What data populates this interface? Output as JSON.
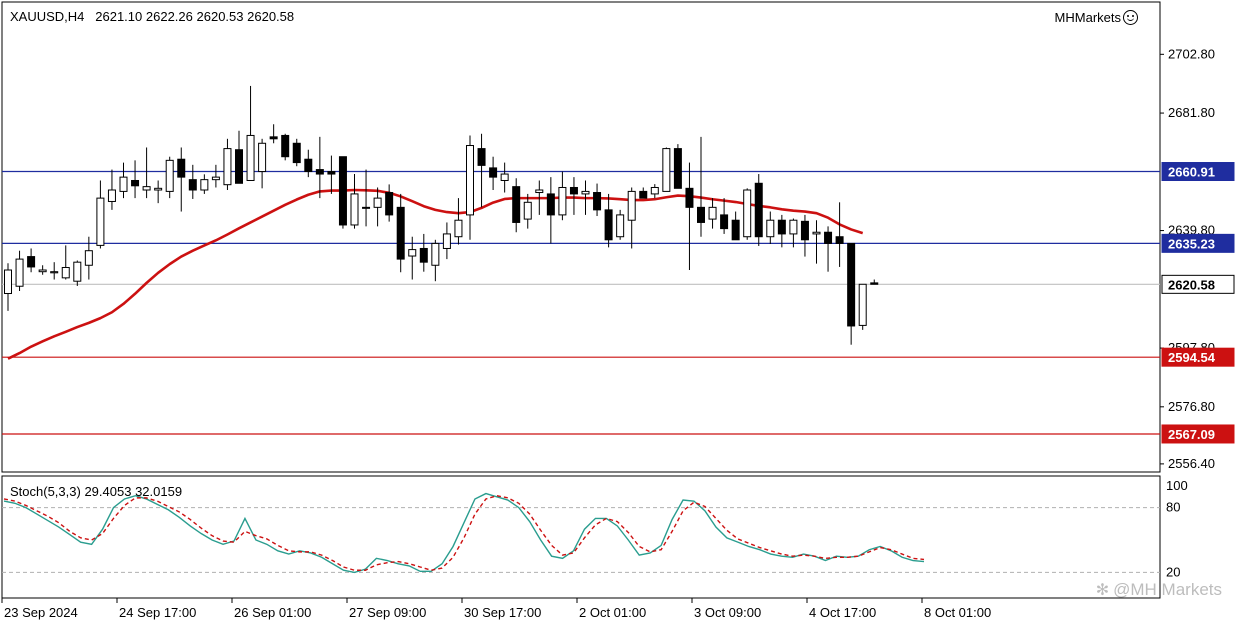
{
  "header": {
    "symbol": "XAUUSD,H4",
    "open": "2621.10",
    "high": "2622.26",
    "low": "2620.53",
    "close": "2620.58"
  },
  "brand": {
    "name": "MHMarkets"
  },
  "watermark": {
    "text": "@MH Markets",
    "icon": "asterisk-like-logo-icon"
  },
  "colors": {
    "bull_fill": "#ffffff",
    "bear_fill": "#000000",
    "ma_line": "#cc1111",
    "support_line": "#cc1111",
    "resistance_line": "#1f2d9f",
    "current_price_line": "#c0c0c0",
    "stoch_main": "#2a9d8f",
    "stoch_signal": "#cc1111"
  },
  "chart_data": [
    {
      "type": "candlestick",
      "title": "XAUUSD,H4",
      "y_ticks": [
        "2702.80",
        "2681.80",
        "2639.80",
        "2597.80",
        "2576.80",
        "2556.40"
      ],
      "x_ticks": [
        "23 Sep 2024",
        "24 Sep 17:00",
        "26 Sep 01:00",
        "27 Sep 09:00",
        "30 Sep 17:00",
        "2 Oct 01:00",
        "3 Oct 09:00",
        "4 Oct 17:00",
        "8 Oct 01:00"
      ],
      "ylim": [
        2553.5,
        2721.5
      ],
      "price_levels": [
        {
          "label": "2660.91",
          "value": 2660.91,
          "kind": "resistance"
        },
        {
          "label": "2635.23",
          "value": 2635.23,
          "kind": "resistance"
        },
        {
          "label": "2620.58",
          "value": 2620.58,
          "kind": "current"
        },
        {
          "label": "2594.54",
          "value": 2594.54,
          "kind": "support"
        },
        {
          "label": "2567.09",
          "value": 2567.09,
          "kind": "support"
        }
      ],
      "candles": [
        [
          2617.3,
          2628.1,
          2611.1,
          2625.7
        ],
        [
          2619.9,
          2632.6,
          2618.2,
          2629.6
        ],
        [
          2630.5,
          2633.4,
          2624.9,
          2626.8
        ],
        [
          2625.1,
          2627.4,
          2624.0,
          2625.7
        ],
        [
          2624.7,
          2628.5,
          2622.3,
          2625.1
        ],
        [
          2622.9,
          2634.5,
          2622.3,
          2626.6
        ],
        [
          2621.7,
          2629.1,
          2620.0,
          2628.5
        ],
        [
          2627.4,
          2637.6,
          2622.3,
          2632.6
        ],
        [
          2634.5,
          2657.7,
          2633.4,
          2651.4
        ],
        [
          2650.2,
          2661.6,
          2647.2,
          2654.3
        ],
        [
          2653.8,
          2664.1,
          2651.4,
          2658.9
        ],
        [
          2657.7,
          2664.9,
          2651.4,
          2655.8
        ],
        [
          2654.3,
          2669.5,
          2651.4,
          2655.5
        ],
        [
          2654.3,
          2657.7,
          2649.6,
          2654.9
        ],
        [
          2653.8,
          2666.2,
          2651.4,
          2664.9
        ],
        [
          2665.3,
          2669.5,
          2646.6,
          2658.9
        ],
        [
          2658.0,
          2663.3,
          2651.1,
          2654.3
        ],
        [
          2654.3,
          2659.9,
          2652.9,
          2658.0
        ],
        [
          2658.0,
          2663.3,
          2655.2,
          2658.9
        ],
        [
          2656.2,
          2672.6,
          2654.3,
          2669.1
        ],
        [
          2668.7,
          2675.5,
          2656.7,
          2656.7
        ],
        [
          2657.7,
          2691.5,
          2657.7,
          2673.8
        ],
        [
          2660.9,
          2672.6,
          2654.9,
          2671.0
        ],
        [
          2673.3,
          2677.8,
          2671.0,
          2672.6
        ],
        [
          2673.8,
          2674.4,
          2664.9,
          2666.2
        ],
        [
          2671.0,
          2672.6,
          2662.8,
          2664.1
        ],
        [
          2665.3,
          2668.7,
          2658.9,
          2660.9
        ],
        [
          2661.6,
          2673.3,
          2651.4,
          2660.0
        ],
        [
          2660.9,
          2666.6,
          2652.9,
          2660.0
        ],
        [
          2666.2,
          2666.2,
          2640.5,
          2641.8
        ],
        [
          2641.8,
          2660.0,
          2640.5,
          2652.9
        ],
        [
          2648.1,
          2661.6,
          2641.3,
          2648.1
        ],
        [
          2648.1,
          2655.2,
          2641.3,
          2651.4
        ],
        [
          2653.4,
          2656.3,
          2643.0,
          2645.4
        ],
        [
          2648.1,
          2652.9,
          2624.9,
          2629.6
        ],
        [
          2630.7,
          2637.6,
          2622.3,
          2633.0
        ],
        [
          2633.4,
          2638.6,
          2625.1,
          2628.5
        ],
        [
          2627.4,
          2636.5,
          2621.7,
          2635.2
        ],
        [
          2633.4,
          2642.7,
          2629.6,
          2638.6
        ],
        [
          2637.6,
          2651.4,
          2634.8,
          2643.5
        ],
        [
          2645.4,
          2673.8,
          2636.5,
          2670.2
        ],
        [
          2669.1,
          2674.4,
          2648.1,
          2663.1
        ],
        [
          2662.2,
          2666.2,
          2654.3,
          2658.9
        ],
        [
          2657.7,
          2664.1,
          2653.4,
          2660.0
        ],
        [
          2655.5,
          2658.5,
          2639.2,
          2642.7
        ],
        [
          2643.9,
          2652.9,
          2640.5,
          2649.9
        ],
        [
          2653.4,
          2657.7,
          2645.4,
          2654.3
        ],
        [
          2652.9,
          2658.9,
          2635.2,
          2645.4
        ],
        [
          2645.4,
          2660.9,
          2643.5,
          2655.2
        ],
        [
          2655.2,
          2658.9,
          2645.4,
          2652.9
        ],
        [
          2652.9,
          2657.7,
          2645.4,
          2653.8
        ],
        [
          2653.4,
          2656.6,
          2645.0,
          2647.2
        ],
        [
          2647.2,
          2652.9,
          2633.8,
          2636.5
        ],
        [
          2637.6,
          2647.2,
          2636.5,
          2645.4
        ],
        [
          2643.5,
          2655.2,
          2633.4,
          2653.8
        ],
        [
          2653.8,
          2655.2,
          2651.4,
          2651.4
        ],
        [
          2652.9,
          2656.4,
          2651.4,
          2655.2
        ],
        [
          2653.8,
          2669.5,
          2653.8,
          2669.1
        ],
        [
          2669.1,
          2670.7,
          2654.9,
          2654.9
        ],
        [
          2654.9,
          2664.1,
          2625.7,
          2648.1
        ],
        [
          2648.1,
          2673.3,
          2637.6,
          2642.7
        ],
        [
          2643.9,
          2651.4,
          2640.5,
          2648.1
        ],
        [
          2645.4,
          2651.4,
          2638.6,
          2640.5
        ],
        [
          2643.5,
          2646.6,
          2636.5,
          2636.5
        ],
        [
          2637.6,
          2654.9,
          2636.5,
          2654.3
        ],
        [
          2656.7,
          2660.0,
          2634.3,
          2637.6
        ],
        [
          2637.6,
          2646.6,
          2635.0,
          2643.5
        ],
        [
          2643.5,
          2645.4,
          2633.8,
          2638.6
        ],
        [
          2638.6,
          2644.1,
          2633.8,
          2643.5
        ],
        [
          2643.1,
          2645.4,
          2630.5,
          2636.5
        ],
        [
          2638.6,
          2643.5,
          2628.0,
          2639.2
        ],
        [
          2639.2,
          2641.3,
          2625.1,
          2635.2
        ],
        [
          2637.6,
          2649.9,
          2626.8,
          2635.2
        ],
        [
          2635.2,
          2635.2,
          2599.0,
          2605.7
        ],
        [
          2605.9,
          2620.6,
          2604.3,
          2620.6
        ],
        [
          2621.1,
          2622.3,
          2620.5,
          2620.6
        ]
      ],
      "ma": [
        2594.0,
        2596.0,
        2598.3,
        2600.2,
        2602.0,
        2603.6,
        2605.3,
        2606.8,
        2608.5,
        2610.6,
        2613.6,
        2617.2,
        2621.1,
        2624.7,
        2627.8,
        2630.5,
        2632.6,
        2634.5,
        2636.3,
        2638.4,
        2640.6,
        2642.7,
        2644.8,
        2646.9,
        2649.0,
        2650.9,
        2652.6,
        2653.8,
        2654.1,
        2654.1,
        2654.3,
        2654.2,
        2654.0,
        2653.3,
        2652.0,
        2650.3,
        2648.5,
        2647.2,
        2646.4,
        2646.0,
        2646.4,
        2647.9,
        2649.8,
        2651.1,
        2651.4,
        2651.4,
        2651.4,
        2651.4,
        2651.6,
        2651.6,
        2651.4,
        2651.4,
        2651.3,
        2651.0,
        2650.7,
        2650.7,
        2651.0,
        2651.7,
        2652.3,
        2652.1,
        2651.6,
        2651.0,
        2650.5,
        2650.0,
        2649.3,
        2648.6,
        2648.1,
        2647.4,
        2646.9,
        2646.6,
        2646.0,
        2644.4,
        2642.0,
        2640.2,
        2638.9
      ]
    },
    {
      "type": "line",
      "title": "Stoch(5,3,3)",
      "main_value": "29.4053",
      "signal_value": "32.0159",
      "y_ticks": [
        "100",
        "80",
        "20"
      ],
      "ylim": [
        0,
        100
      ],
      "levels": [
        80,
        20
      ],
      "series": [
        {
          "key": "main",
          "values": [
            86,
            84,
            80,
            74,
            68,
            62,
            55,
            48,
            46,
            60,
            80,
            88,
            91,
            88,
            83,
            78,
            71,
            63,
            56,
            50,
            46,
            49,
            70,
            50,
            46,
            40,
            37,
            40,
            38,
            34,
            28,
            22,
            20,
            23,
            33,
            31,
            28,
            26,
            21,
            21,
            28,
            44,
            66,
            88,
            93,
            90,
            87,
            80,
            67,
            50,
            35,
            33,
            40,
            60,
            70,
            70,
            63,
            50,
            36,
            38,
            45,
            69,
            87,
            86,
            77,
            62,
            52,
            48,
            44,
            41,
            37,
            35,
            34,
            37,
            35,
            31,
            35,
            34,
            35,
            41,
            44,
            40,
            34,
            31,
            30
          ]
        },
        {
          "key": "signal",
          "values": [
            88,
            86,
            82,
            77,
            72,
            66,
            58,
            52,
            50,
            56,
            70,
            82,
            89,
            89,
            86,
            81,
            76,
            69,
            61,
            54,
            49,
            48,
            58,
            54,
            51,
            45,
            40,
            39,
            39,
            36,
            31,
            25,
            22,
            22,
            27,
            29,
            30,
            28,
            25,
            22,
            24,
            34,
            52,
            74,
            88,
            91,
            89,
            84,
            74,
            59,
            45,
            36,
            38,
            52,
            64,
            70,
            67,
            57,
            44,
            39,
            41,
            58,
            77,
            85,
            81,
            70,
            59,
            51,
            47,
            43,
            40,
            37,
            35,
            36,
            35,
            33,
            34,
            34,
            35,
            39,
            43,
            41,
            37,
            33,
            32
          ]
        }
      ],
      "x_ticks_shared": true
    }
  ]
}
